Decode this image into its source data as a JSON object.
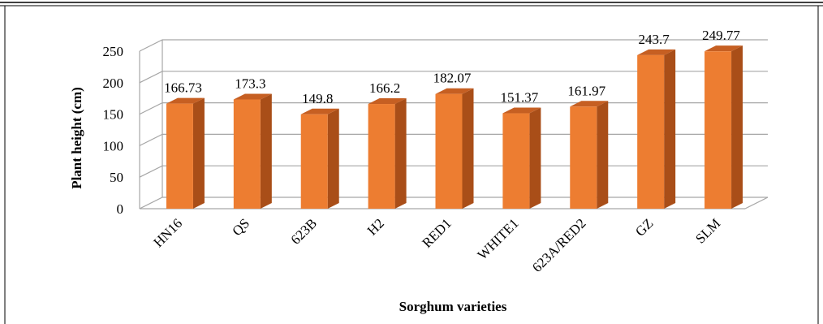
{
  "chart_data": {
    "type": "bar",
    "style": "3d-clustered-column",
    "categories": [
      "HN16",
      "QS",
      "623B",
      "H2",
      "RED1",
      "WHITE1",
      "623A/RED2",
      "GZ",
      "SLM"
    ],
    "values": [
      166.73,
      173.3,
      149.8,
      166.2,
      182.07,
      151.37,
      161.97,
      243.7,
      249.77
    ],
    "data_labels": [
      "166.73",
      "173.3",
      "149.8",
      "166.2",
      "182.07",
      "151.37",
      "161.97",
      "243.7",
      "249.77"
    ],
    "xlabel": "Sorghum varieties",
    "ylabel": "Plant height (cm)",
    "ylim": [
      0,
      250
    ],
    "yticks": [
      0,
      50,
      100,
      150,
      200,
      250
    ],
    "grid": true,
    "legend": "none",
    "colors": {
      "bar_front": "#ED7D31",
      "bar_side": "#A94E18",
      "bar_top": "#C65F22",
      "grid": "#A6A6A6",
      "frame": "#000000"
    }
  }
}
